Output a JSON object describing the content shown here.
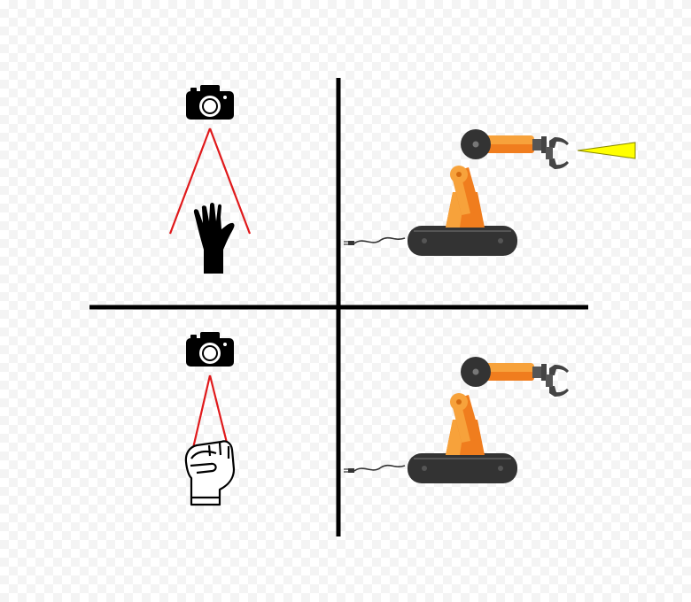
{
  "colors": {
    "divider": "#000000",
    "camera": "#000000",
    "view_cone": "#e0191b",
    "robot_orange_light": "#f7a23b",
    "robot_orange_dark": "#f07d1e",
    "robot_base": "#333333",
    "gripper": "#444444",
    "beam": "#ffff00",
    "beam_stroke": "#8a8a00"
  },
  "quadrants": [
    {
      "position": "top-left",
      "icons": [
        "camera-icon",
        "open-hand-icon"
      ],
      "gesture": "open-hand"
    },
    {
      "position": "top-right",
      "icons": [
        "robot-arm-icon",
        "gripper-icon",
        "beam-icon"
      ],
      "gripper_state": "emitting"
    },
    {
      "position": "bottom-left",
      "icons": [
        "camera-icon",
        "fist-icon"
      ],
      "gesture": "fist"
    },
    {
      "position": "bottom-right",
      "icons": [
        "robot-arm-icon",
        "gripper-icon"
      ],
      "gripper_state": "idle"
    }
  ]
}
